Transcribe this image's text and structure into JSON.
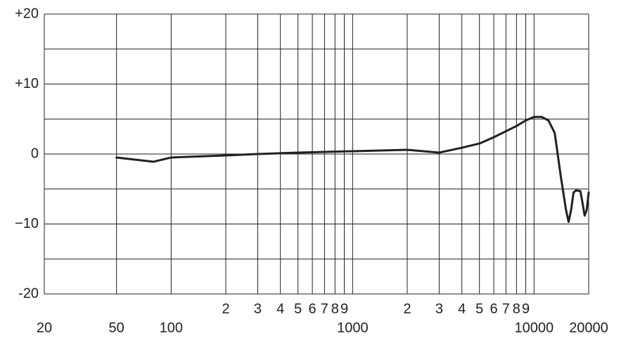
{
  "chart_data": {
    "type": "line",
    "xscale": "log",
    "xlim": [
      20,
      20000
    ],
    "ylim": [
      -20,
      20
    ],
    "yticks": [
      {
        "value": -20,
        "label": "-20"
      },
      {
        "value": -10,
        "label": "−10"
      },
      0,
      {
        "value": 10,
        "label": "+10"
      },
      {
        "value": 20,
        "label": "+20"
      }
    ],
    "yminor": [
      -15,
      -5,
      5,
      15
    ],
    "xticks": [
      20,
      50,
      100,
      {
        "value": 200,
        "label": "2"
      },
      {
        "value": 300,
        "label": "3"
      },
      {
        "value": 400,
        "label": "4"
      },
      {
        "value": 500,
        "label": "5"
      },
      {
        "value": 600,
        "label": "6"
      },
      {
        "value": 700,
        "label": "7"
      },
      {
        "value": 800,
        "label": "8"
      },
      {
        "value": 900,
        "label": "9"
      },
      1000,
      {
        "value": 2000,
        "label": "2"
      },
      {
        "value": 3000,
        "label": "3"
      },
      {
        "value": 4000,
        "label": "4"
      },
      {
        "value": 5000,
        "label": "5"
      },
      {
        "value": 6000,
        "label": "6"
      },
      {
        "value": 7000,
        "label": "7"
      },
      {
        "value": 8000,
        "label": "8"
      },
      {
        "value": 9000,
        "label": "9"
      },
      10000,
      20000
    ],
    "grid": true,
    "series": [
      {
        "color": "#231f20",
        "x": [
          50,
          80,
          100,
          200,
          300,
          500,
          1000,
          2000,
          3000,
          4000,
          5000,
          6000,
          8000,
          9000,
          10000,
          11000,
          12000,
          13000,
          14000,
          15000,
          15500,
          16000,
          16500,
          17000,
          18000,
          18500,
          19000,
          19500,
          20000
        ],
        "values": [
          -0.5,
          -1.1,
          -0.5,
          -0.2,
          0,
          0.2,
          0.4,
          0.6,
          0.2,
          0.9,
          1.5,
          2.4,
          4,
          4.8,
          5.3,
          5.3,
          4.8,
          3,
          -3,
          -8,
          -9.7,
          -8,
          -5.5,
          -5.2,
          -5.3,
          -7,
          -8.8,
          -8,
          -5.5
        ]
      }
    ]
  }
}
